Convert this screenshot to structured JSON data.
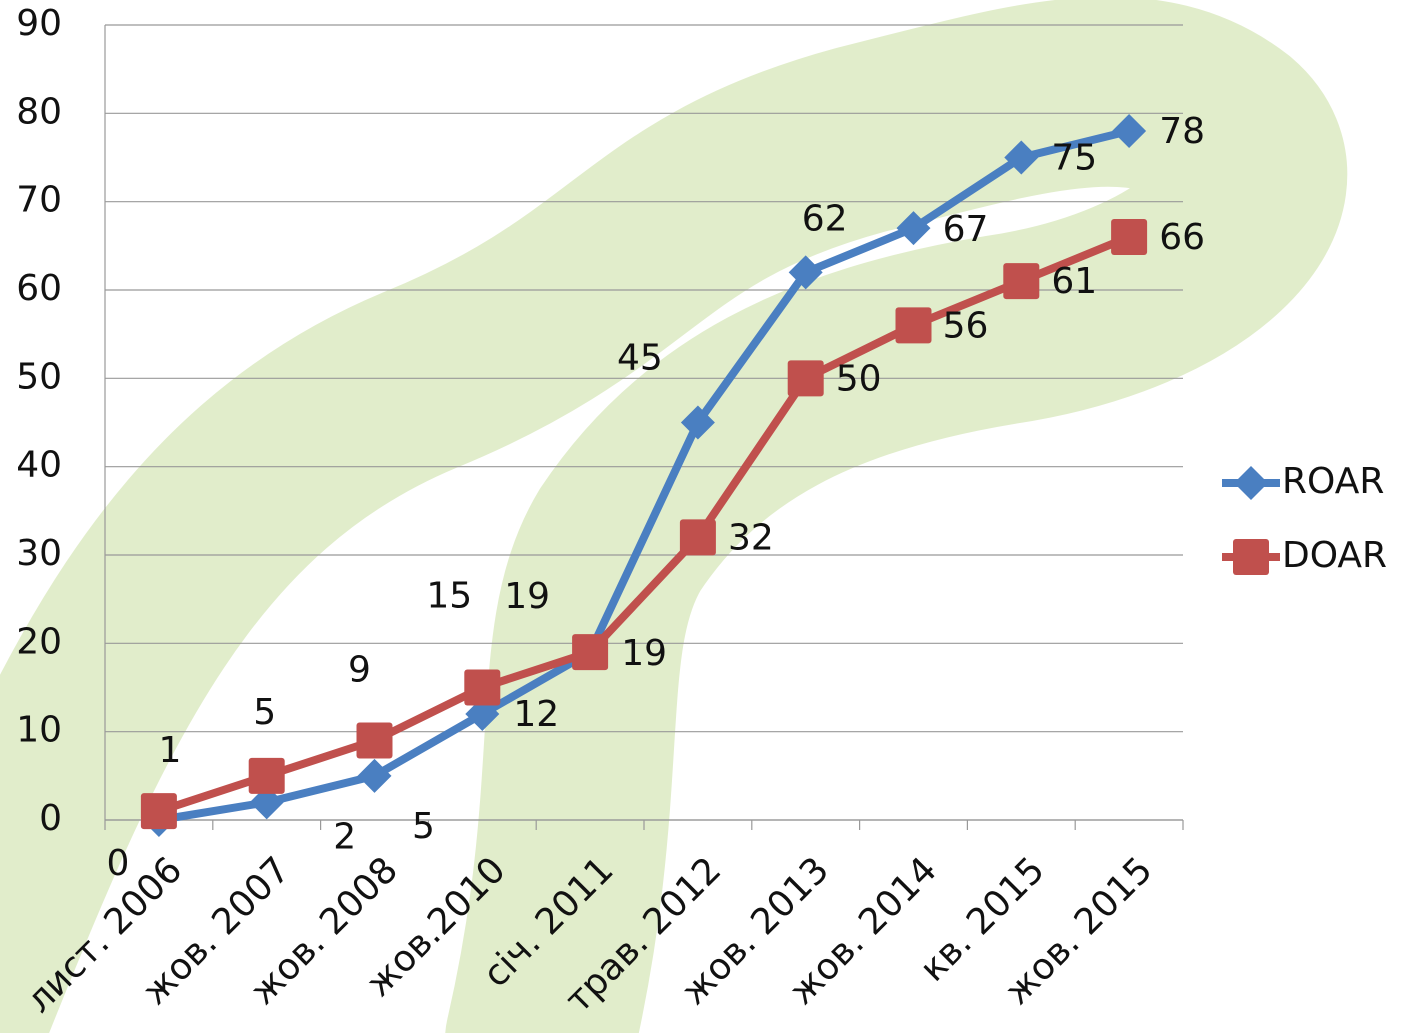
{
  "chart_data": {
    "type": "line",
    "categories": [
      "лист. 2006",
      "жов. 2007",
      "жов. 2008",
      "жов.2010",
      "січ. 2011",
      "трав. 2012",
      "жов. 2013",
      "жов. 2014",
      "кв. 2015",
      "жов. 2015"
    ],
    "series": [
      {
        "name": "ROAR",
        "color": "#4a7fc1",
        "marker": "diamond",
        "values": [
          0,
          2,
          5,
          12,
          19,
          45,
          62,
          67,
          75,
          78
        ]
      },
      {
        "name": "DOAR",
        "color": "#c0504d",
        "marker": "square",
        "values": [
          1,
          5,
          9,
          15,
          19,
          32,
          50,
          56,
          61,
          66
        ]
      }
    ],
    "ylim": [
      0,
      90
    ],
    "yticks": [
      0,
      10,
      20,
      30,
      40,
      50,
      60,
      70,
      80,
      90
    ],
    "grid": true,
    "legend": "right"
  }
}
